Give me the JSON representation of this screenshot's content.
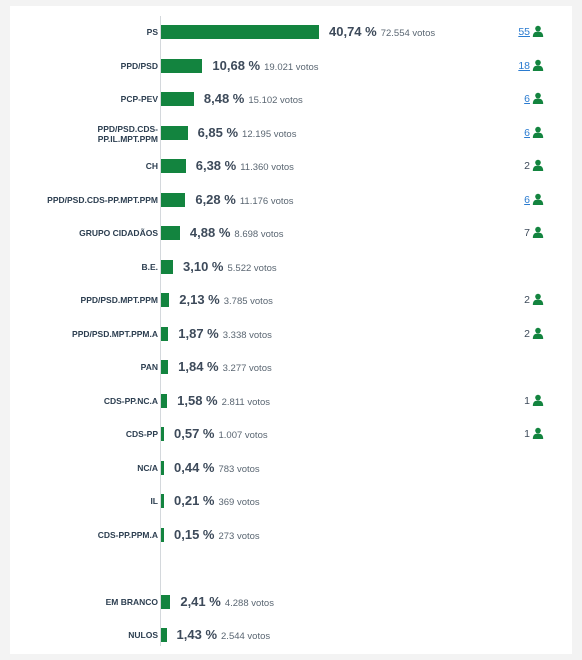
{
  "chart_data": {
    "type": "bar",
    "orientation": "horizontal",
    "bar_color": "#13843f",
    "seat_link_color": "#2a7bd0",
    "xlim": [
      0,
      40.74
    ],
    "rows": [
      {
        "label": "PS",
        "label_lines": [
          "PS"
        ],
        "pct": 40.74,
        "pct_text": "40,74 %",
        "votes_text": "72.554 votos",
        "seats": "55",
        "seats_linked": true
      },
      {
        "label": "PPD/PSD",
        "label_lines": [
          "PPD/PSD"
        ],
        "pct": 10.68,
        "pct_text": "10,68 %",
        "votes_text": "19.021 votos",
        "seats": "18",
        "seats_linked": true
      },
      {
        "label": "PCP-PEV",
        "label_lines": [
          "PCP-PEV"
        ],
        "pct": 8.48,
        "pct_text": "8,48 %",
        "votes_text": "15.102 votos",
        "seats": "6",
        "seats_linked": true
      },
      {
        "label": "PPD/PSD.CDS-PP.IL.MPT.PPM",
        "label_lines": [
          "PPD/PSD.CDS-",
          "PP.IL.MPT.PPM"
        ],
        "pct": 6.85,
        "pct_text": "6,85 %",
        "votes_text": "12.195 votos",
        "seats": "6",
        "seats_linked": true
      },
      {
        "label": "CH",
        "label_lines": [
          "CH"
        ],
        "pct": 6.38,
        "pct_text": "6,38 %",
        "votes_text": "11.360 votos",
        "seats": "2",
        "seats_linked": false
      },
      {
        "label": "PPD/PSD.CDS-PP.MPT.PPM",
        "label_lines": [
          "PPD/PSD.CDS-PP.MPT.PPM"
        ],
        "pct": 6.28,
        "pct_text": "6,28 %",
        "votes_text": "11.176 votos",
        "seats": "6",
        "seats_linked": true
      },
      {
        "label": "GRUPO CIDADÃOS",
        "label_lines": [
          "GRUPO CIDADÃOS"
        ],
        "pct": 4.88,
        "pct_text": "4,88 %",
        "votes_text": "8.698 votos",
        "seats": "7",
        "seats_linked": false
      },
      {
        "label": "B.E.",
        "label_lines": [
          "B.E."
        ],
        "pct": 3.1,
        "pct_text": "3,10 %",
        "votes_text": "5.522 votos",
        "seats": "",
        "seats_linked": false
      },
      {
        "label": "PPD/PSD.MPT.PPM",
        "label_lines": [
          "PPD/PSD.MPT.PPM"
        ],
        "pct": 2.13,
        "pct_text": "2,13 %",
        "votes_text": "3.785 votos",
        "seats": "2",
        "seats_linked": false
      },
      {
        "label": "PPD/PSD.MPT.PPM.A",
        "label_lines": [
          "PPD/PSD.MPT.PPM.A"
        ],
        "pct": 1.87,
        "pct_text": "1,87 %",
        "votes_text": "3.338 votos",
        "seats": "2",
        "seats_linked": false
      },
      {
        "label": "PAN",
        "label_lines": [
          "PAN"
        ],
        "pct": 1.84,
        "pct_text": "1,84 %",
        "votes_text": "3.277 votos",
        "seats": "",
        "seats_linked": false
      },
      {
        "label": "CDS-PP.NC.A",
        "label_lines": [
          "CDS-PP.NC.A"
        ],
        "pct": 1.58,
        "pct_text": "1,58 %",
        "votes_text": "2.811 votos",
        "seats": "1",
        "seats_linked": false
      },
      {
        "label": "CDS-PP",
        "label_lines": [
          "CDS-PP"
        ],
        "pct": 0.57,
        "pct_text": "0,57 %",
        "votes_text": "1.007 votos",
        "seats": "1",
        "seats_linked": false
      },
      {
        "label": "NC/A",
        "label_lines": [
          "NC/A"
        ],
        "pct": 0.44,
        "pct_text": "0,44 %",
        "votes_text": "783 votos",
        "seats": "",
        "seats_linked": false
      },
      {
        "label": "IL",
        "label_lines": [
          "IL"
        ],
        "pct": 0.21,
        "pct_text": "0,21 %",
        "votes_text": "369 votos",
        "seats": "",
        "seats_linked": false
      },
      {
        "label": "CDS-PP.PPM.A",
        "label_lines": [
          "CDS-PP.PPM.A"
        ],
        "pct": 0.15,
        "pct_text": "0,15 %",
        "votes_text": "273 votos",
        "seats": "",
        "seats_linked": false
      },
      {
        "label": "EM BRANCO",
        "label_lines": [
          "EM BRANCO"
        ],
        "pct": 2.41,
        "pct_text": "2,41 %",
        "votes_text": "4.288 votos",
        "seats": "",
        "seats_linked": false,
        "group": "other"
      },
      {
        "label": "NULOS",
        "label_lines": [
          "NULOS"
        ],
        "pct": 1.43,
        "pct_text": "1,43 %",
        "votes_text": "2.544 votos",
        "seats": "",
        "seats_linked": false,
        "group": "other"
      }
    ]
  }
}
